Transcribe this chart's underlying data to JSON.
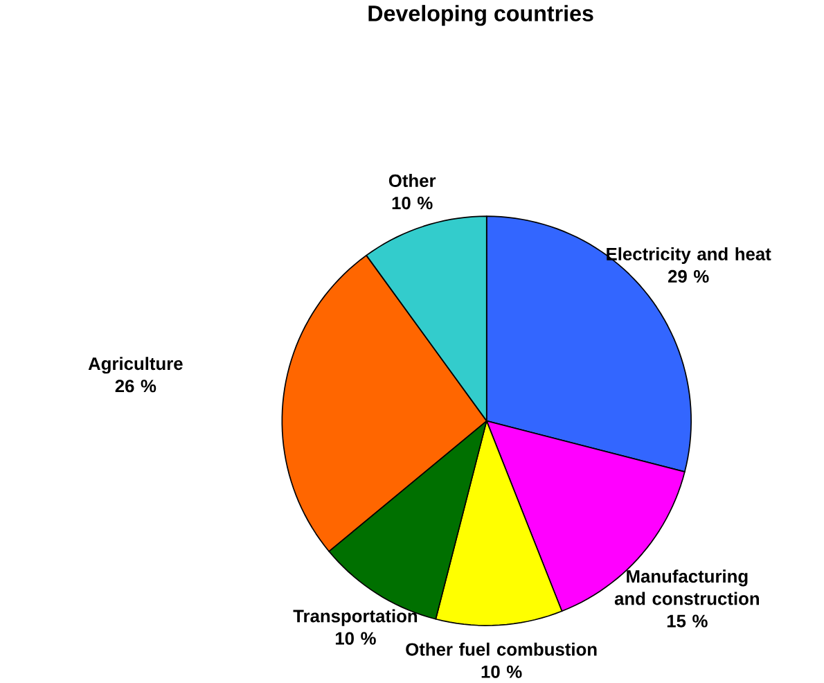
{
  "chart_data": {
    "type": "pie",
    "title": "Developing countries",
    "categories": [
      "Electricity and heat",
      "Manufacturing and construction",
      "Other fuel combustion",
      "Transportation",
      "Agriculture",
      "Other"
    ],
    "values": [
      29,
      15,
      10,
      10,
      26,
      10
    ],
    "value_labels": [
      "29 %",
      "15 %",
      "10 %",
      "10 %",
      "26 %",
      "10 %"
    ],
    "colors": [
      "#3366ff",
      "#ff00ff",
      "#ffff00",
      "#007000",
      "#ff6600",
      "#33cccc"
    ]
  }
}
